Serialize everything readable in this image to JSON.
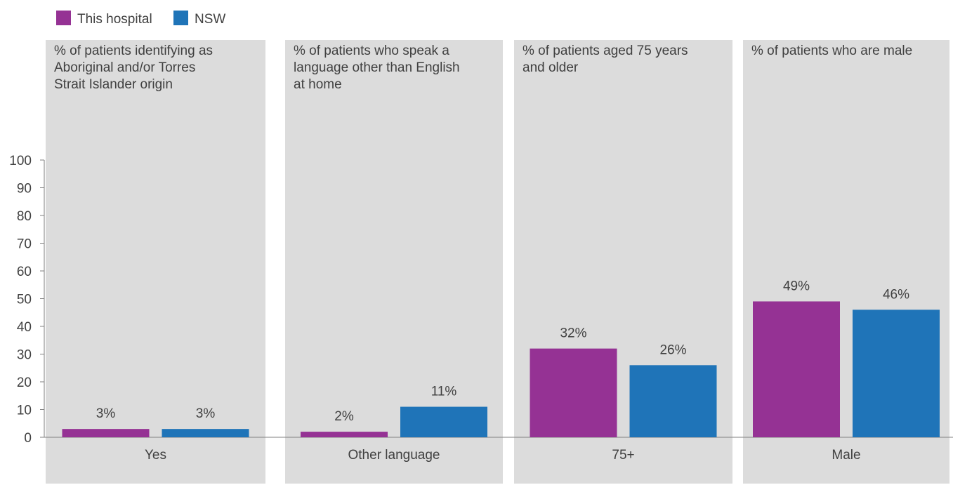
{
  "chart_data": {
    "type": "bar",
    "series": [
      {
        "name": "This hospital",
        "color": "#953294"
      },
      {
        "name": "NSW",
        "color": "#1f74b8"
      }
    ],
    "panels": [
      {
        "title_lines": [
          "% of patients identifying as",
          "Aboriginal and/or Torres",
          "Strait Islander origin"
        ],
        "category": "Yes",
        "values": [
          3,
          3
        ],
        "labels": [
          "3%",
          "3%"
        ]
      },
      {
        "title_lines": [
          "% of patients who speak a",
          "language other than English",
          "at home"
        ],
        "category": "Other language",
        "values": [
          2,
          11
        ],
        "labels": [
          "2%",
          "11%"
        ]
      },
      {
        "title_lines": [
          "% of patients aged 75 years",
          "and older"
        ],
        "category": "75+",
        "values": [
          32,
          26
        ],
        "labels": [
          "32%",
          "26%"
        ]
      },
      {
        "title_lines": [
          "% of patients who are male"
        ],
        "category": "Male",
        "values": [
          49,
          46
        ],
        "labels": [
          "49%",
          "46%"
        ]
      }
    ],
    "yticks": [
      "0",
      "10",
      "20",
      "30",
      "40",
      "50",
      "60",
      "70",
      "80",
      "90",
      "100"
    ],
    "ylim": [
      0,
      100
    ],
    "legend_position": "top-left",
    "grid": false,
    "panel_background": "#dcdcdc"
  }
}
